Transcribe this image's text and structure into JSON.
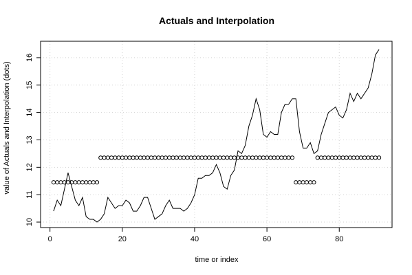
{
  "chart_data": {
    "type": "line",
    "title": "Actuals and Interpolation",
    "xlabel": "time or index",
    "ylabel": "value of Actuals and Interpolation (dots)",
    "xlim": [
      -2.6,
      94.6
    ],
    "ylim": [
      9.8,
      16.6
    ],
    "xticks": [
      0,
      20,
      40,
      60,
      80
    ],
    "yticks": [
      10,
      11,
      12,
      13,
      14,
      15,
      16
    ],
    "grid": true,
    "series": [
      {
        "style": "line",
        "color": "#000000",
        "x": [
          1,
          2,
          3,
          4,
          5,
          6,
          7,
          8,
          9,
          10,
          11,
          12,
          13,
          14,
          15,
          16,
          17,
          18,
          19,
          20,
          21,
          22,
          23,
          24,
          25,
          26,
          27,
          28,
          29,
          30,
          31,
          32,
          33,
          34,
          35,
          36,
          37,
          38,
          39,
          40,
          41,
          42,
          43,
          44,
          45,
          46,
          47,
          48,
          49,
          50,
          51,
          52,
          53,
          54,
          55,
          56,
          57,
          58,
          59,
          60,
          61,
          62,
          63,
          64,
          65,
          66,
          67,
          68,
          69,
          70,
          71,
          72,
          73,
          74,
          75,
          76,
          77,
          78,
          79,
          80,
          81,
          82,
          83,
          84,
          85,
          86,
          87,
          88,
          89,
          90,
          91
        ],
        "y": [
          10.4,
          10.8,
          10.6,
          11.2,
          11.8,
          11.3,
          10.8,
          10.6,
          10.9,
          10.2,
          10.1,
          10.1,
          10.0,
          10.1,
          10.3,
          10.9,
          10.7,
          10.5,
          10.6,
          10.6,
          10.8,
          10.7,
          10.4,
          10.4,
          10.6,
          10.9,
          10.9,
          10.5,
          10.1,
          10.2,
          10.3,
          10.6,
          10.8,
          10.5,
          10.5,
          10.5,
          10.4,
          10.5,
          10.7,
          11.0,
          11.6,
          11.6,
          11.7,
          11.7,
          11.8,
          12.1,
          11.8,
          11.3,
          11.2,
          11.7,
          11.9,
          12.6,
          12.5,
          12.8,
          13.5,
          13.9,
          14.5,
          14.1,
          13.2,
          13.1,
          13.3,
          13.2,
          13.2,
          14.0,
          14.3,
          14.3,
          14.5,
          14.5,
          13.3,
          12.7,
          12.7,
          12.9,
          12.5,
          12.6,
          13.2,
          13.6,
          14.0,
          14.1,
          14.2,
          13.9,
          13.8,
          14.1,
          14.7,
          14.4,
          14.7,
          14.5,
          14.7,
          14.9,
          15.4,
          16.1,
          16.3
        ]
      },
      {
        "style": "points",
        "color": "#000000",
        "x": [
          1,
          2,
          3,
          4,
          5,
          6,
          7,
          8,
          9,
          10,
          11,
          12,
          13,
          14,
          15,
          16,
          17,
          18,
          19,
          20,
          21,
          22,
          23,
          24,
          25,
          26,
          27,
          28,
          29,
          30,
          31,
          32,
          33,
          34,
          35,
          36,
          37,
          38,
          39,
          40,
          41,
          42,
          43,
          44,
          45,
          46,
          47,
          48,
          49,
          50,
          51,
          52,
          53,
          54,
          55,
          56,
          57,
          58,
          59,
          60,
          61,
          62,
          63,
          64,
          65,
          66,
          67,
          68,
          69,
          70,
          71,
          72,
          73,
          74,
          75,
          76,
          77,
          78,
          79,
          80,
          81,
          82,
          83,
          84,
          85,
          86,
          87,
          88,
          89,
          90,
          91
        ],
        "y": [
          11.45,
          11.45,
          11.45,
          11.45,
          11.45,
          11.45,
          11.45,
          11.45,
          11.45,
          11.45,
          11.45,
          11.45,
          11.45,
          12.35,
          12.35,
          12.35,
          12.35,
          12.35,
          12.35,
          12.35,
          12.35,
          12.35,
          12.35,
          12.35,
          12.35,
          12.35,
          12.35,
          12.35,
          12.35,
          12.35,
          12.35,
          12.35,
          12.35,
          12.35,
          12.35,
          12.35,
          12.35,
          12.35,
          12.35,
          12.35,
          12.35,
          12.35,
          12.35,
          12.35,
          12.35,
          12.35,
          12.35,
          12.35,
          12.35,
          12.35,
          12.35,
          12.35,
          12.35,
          12.35,
          12.35,
          12.35,
          12.35,
          12.35,
          12.35,
          12.35,
          12.35,
          12.35,
          12.35,
          12.35,
          12.35,
          12.35,
          12.35,
          11.45,
          11.45,
          11.45,
          11.45,
          11.45,
          11.45,
          12.35,
          12.35,
          12.35,
          12.35,
          12.35,
          12.35,
          12.35,
          12.35,
          12.35,
          12.35,
          12.35,
          12.35,
          12.35,
          12.35,
          12.35,
          12.35,
          12.35,
          12.35
        ]
      }
    ]
  }
}
